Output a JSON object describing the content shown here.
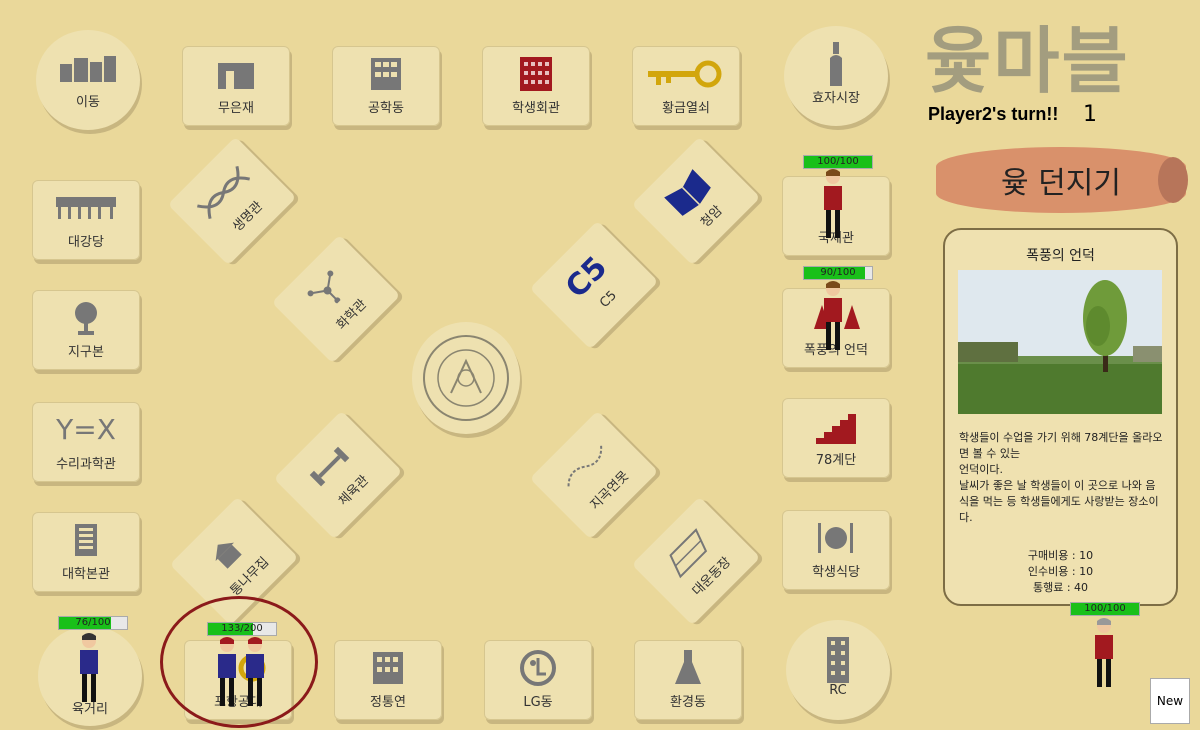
{
  "game": {
    "title": "윷마블",
    "turn_text": "Player2's turn!!",
    "turn_number": "1",
    "roll_button": "윷 던지기",
    "new_button": "New"
  },
  "tiles": {
    "corner_top_left": "이동",
    "corner_top_right": "효자시장",
    "corner_bottom_left": "육거리",
    "corner_bottom_right": "RC",
    "top": [
      "무은재",
      "공학동",
      "학생회관",
      "황금열쇠"
    ],
    "left": [
      "대강당",
      "지구본",
      "수리과학관",
      "대학본관"
    ],
    "left_icon_text": "Y=X",
    "right": [
      "국제관",
      "폭풍의 언덕",
      "78계단",
      "학생식당"
    ],
    "bottom": [
      "포항공대",
      "정통연",
      "LG동",
      "환경동"
    ],
    "diag_tl": [
      "생명관",
      "화학관"
    ],
    "diag_tr": [
      "청암",
      "C5"
    ],
    "diag_bl": [
      "통나무집",
      "체육관"
    ],
    "diag_br": [
      "대운동장",
      "지곡연못"
    ],
    "c5_icon_text": "C5"
  },
  "players": {
    "p_international": {
      "hp": "100/100",
      "hp_fraction": 1.0
    },
    "p_storm": {
      "hp": "90/100",
      "hp_fraction": 0.9
    },
    "p_sidebar": {
      "hp": "100/100",
      "hp_fraction": 1.0
    },
    "p_yukgeori": {
      "hp": "76/100",
      "hp_fraction": 0.76
    },
    "p_pair": {
      "hp": "133/200",
      "hp_fraction": 0.665
    }
  },
  "info_panel": {
    "title": "폭풍의 언덕",
    "description": [
      "학생들이 수업을 가기 위해 78계단을 올라오면 볼 수 있는",
      "언덕이다.",
      "날씨가 좋은 날 학생들이 이 곳으로 나와 음식을 먹는 등 학생들에게도 사랑받는 장소이다."
    ],
    "costs": [
      "구매비용 : 10",
      "인수비용 : 10",
      "통행료 : 40"
    ]
  },
  "colors": {
    "background": "#ead89a",
    "tile": "#eee1b0",
    "hp_green": "#19c019",
    "roll_button": "#d9916b"
  }
}
